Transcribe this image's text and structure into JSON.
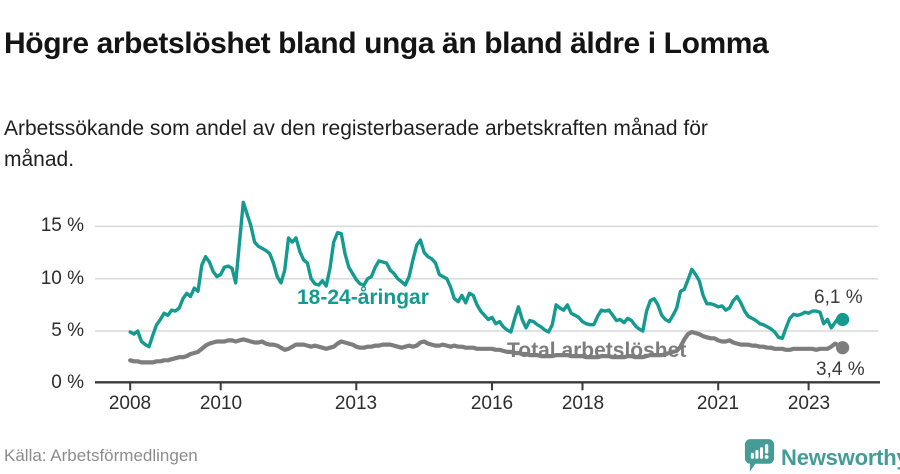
{
  "header": {
    "title": "Högre arbetslöshet bland unga än bland äldre i Lomma",
    "subtitle": "Arbetssökande som andel av den registerbaserade arbetskraften månad för månad."
  },
  "footer": {
    "source": "Källa: Arbetsförmedlingen",
    "logo_text": "Newsworthy",
    "logo_icon": "bar-chart-speech-bubble-icon"
  },
  "colors": {
    "youth": "#149a8f",
    "total": "#7d7d7d",
    "grid": "#d9d9d9",
    "axis": "#3a3a3a",
    "axis_text": "#2d2d2d",
    "title_text": "#141414",
    "end_label_text": "#3a3a3a",
    "source_text": "#8c8c8c",
    "logo_teal": "#459c96"
  },
  "chart_data": {
    "type": "line",
    "title": "Högre arbetslöshet bland unga än bland äldre i Lomma",
    "subtitle": "Arbetssökande som andel av den registerbaserade arbetskraften månad för månad.",
    "x_start": {
      "year": 2008,
      "month": 1
    },
    "x_end": {
      "year": 2023,
      "month": 10
    },
    "x_frequency": "monthly",
    "x_tick_years": [
      2008,
      2010,
      2013,
      2016,
      2018,
      2021,
      2023
    ],
    "x_tick_labels": [
      "2008",
      "2010",
      "2013",
      "2016",
      "2018",
      "2021",
      "2023"
    ],
    "y_ticks": [
      0,
      5,
      10,
      15
    ],
    "y_tick_labels": [
      "0 %",
      "5 %",
      "10 %",
      "15 %"
    ],
    "ylim": [
      0,
      18
    ],
    "grid": "horizontal",
    "unit": "%",
    "series": [
      {
        "id": "youth",
        "name": "18-24-åringar",
        "color": "#149a8f",
        "end_label": "6,1 %",
        "end_value": 6.1,
        "values": [
          4.9,
          4.7,
          5.0,
          4.0,
          3.7,
          3.5,
          4.6,
          5.6,
          6.1,
          6.7,
          6.5,
          7.0,
          6.9,
          7.2,
          8.1,
          8.6,
          8.3,
          9.1,
          8.8,
          11.3,
          12.1,
          11.6,
          10.7,
          10.2,
          10.4,
          11.1,
          11.2,
          11.0,
          9.6,
          13.5,
          17.3,
          16.2,
          15.1,
          13.5,
          13.1,
          12.9,
          12.7,
          12.4,
          11.5,
          10.2,
          9.6,
          10.8,
          13.9,
          13.5,
          13.9,
          12.6,
          11.8,
          11.5,
          10.0,
          9.5,
          9.4,
          9.8,
          9.3,
          11.0,
          13.5,
          14.4,
          14.3,
          12.4,
          11.1,
          10.5,
          9.9,
          9.5,
          9.4,
          10.0,
          10.2,
          11.1,
          11.7,
          11.6,
          11.5,
          10.8,
          10.5,
          10.0,
          9.7,
          9.4,
          10.2,
          11.8,
          13.2,
          13.7,
          12.5,
          12.1,
          11.9,
          11.5,
          10.4,
          10.2,
          10.0,
          9.2,
          8.1,
          7.8,
          8.4,
          7.7,
          8.6,
          8.4,
          7.5,
          6.9,
          6.5,
          6.1,
          6.3,
          5.7,
          5.9,
          5.4,
          5.1,
          4.9,
          6.2,
          7.3,
          6.1,
          5.3,
          6.0,
          5.9,
          5.6,
          5.4,
          5.1,
          4.9,
          5.6,
          7.5,
          7.2,
          7.0,
          7.5,
          6.7,
          6.5,
          6.3,
          5.9,
          5.7,
          5.6,
          5.6,
          6.4,
          7.0,
          6.9,
          7.0,
          6.5,
          6.0,
          6.1,
          5.8,
          6.2,
          6.0,
          5.5,
          5.2,
          5.0,
          6.9,
          7.9,
          8.1,
          7.5,
          6.5,
          6.1,
          5.9,
          6.5,
          7.2,
          8.8,
          9.0,
          9.9,
          10.9,
          10.4,
          9.8,
          8.4,
          7.6,
          7.6,
          7.5,
          7.3,
          7.4,
          7.0,
          7.2,
          7.9,
          8.3,
          7.7,
          6.9,
          6.4,
          6.2,
          6.0,
          5.7,
          5.6,
          5.4,
          5.2,
          4.9,
          4.4,
          4.3,
          5.3,
          6.2,
          6.6,
          6.5,
          6.6,
          6.8,
          6.7,
          6.9,
          6.9,
          6.8,
          5.7,
          6.1,
          5.3,
          5.8,
          6.3,
          6.1
        ]
      },
      {
        "id": "total",
        "name": "Total arbetslöshet",
        "color": "#7d7d7d",
        "end_label": "3,4 %",
        "end_value": 3.4,
        "values": [
          2.2,
          2.1,
          2.1,
          2.0,
          2.0,
          2.0,
          2.0,
          2.1,
          2.1,
          2.2,
          2.2,
          2.3,
          2.4,
          2.5,
          2.5,
          2.6,
          2.8,
          2.9,
          3.0,
          3.3,
          3.6,
          3.8,
          3.9,
          4.0,
          4.0,
          4.0,
          4.1,
          4.1,
          4.0,
          4.1,
          4.2,
          4.1,
          4.0,
          3.9,
          3.9,
          4.0,
          3.8,
          3.7,
          3.7,
          3.6,
          3.4,
          3.2,
          3.3,
          3.5,
          3.7,
          3.7,
          3.7,
          3.6,
          3.5,
          3.6,
          3.5,
          3.4,
          3.3,
          3.4,
          3.5,
          3.8,
          4.0,
          3.9,
          3.8,
          3.7,
          3.5,
          3.4,
          3.4,
          3.5,
          3.5,
          3.6,
          3.6,
          3.7,
          3.7,
          3.7,
          3.6,
          3.5,
          3.4,
          3.5,
          3.6,
          3.5,
          3.6,
          3.9,
          4.0,
          3.8,
          3.7,
          3.6,
          3.6,
          3.7,
          3.6,
          3.5,
          3.6,
          3.5,
          3.5,
          3.4,
          3.4,
          3.4,
          3.3,
          3.3,
          3.3,
          3.3,
          3.3,
          3.2,
          3.2,
          3.1,
          3.0,
          3.0,
          2.9,
          2.9,
          2.8,
          2.8,
          2.7,
          2.7,
          2.7,
          2.6,
          2.6,
          2.6,
          2.6,
          2.7,
          2.7,
          2.7,
          2.7,
          2.6,
          2.6,
          2.6,
          2.6,
          2.5,
          2.5,
          2.5,
          2.5,
          2.6,
          2.6,
          2.6,
          2.5,
          2.5,
          2.5,
          2.5,
          2.6,
          2.6,
          2.5,
          2.5,
          2.5,
          2.6,
          2.7,
          2.7,
          2.7,
          2.7,
          2.8,
          2.9,
          3.0,
          3.1,
          3.5,
          4.2,
          4.7,
          4.9,
          4.8,
          4.7,
          4.5,
          4.4,
          4.3,
          4.3,
          4.1,
          4.0,
          4.0,
          4.1,
          3.9,
          3.8,
          3.7,
          3.7,
          3.7,
          3.6,
          3.6,
          3.5,
          3.5,
          3.4,
          3.4,
          3.3,
          3.3,
          3.3,
          3.2,
          3.2,
          3.3,
          3.3,
          3.3,
          3.3,
          3.3,
          3.3,
          3.2,
          3.3,
          3.3,
          3.3,
          3.5,
          3.8,
          3.6,
          3.4
        ]
      }
    ]
  }
}
